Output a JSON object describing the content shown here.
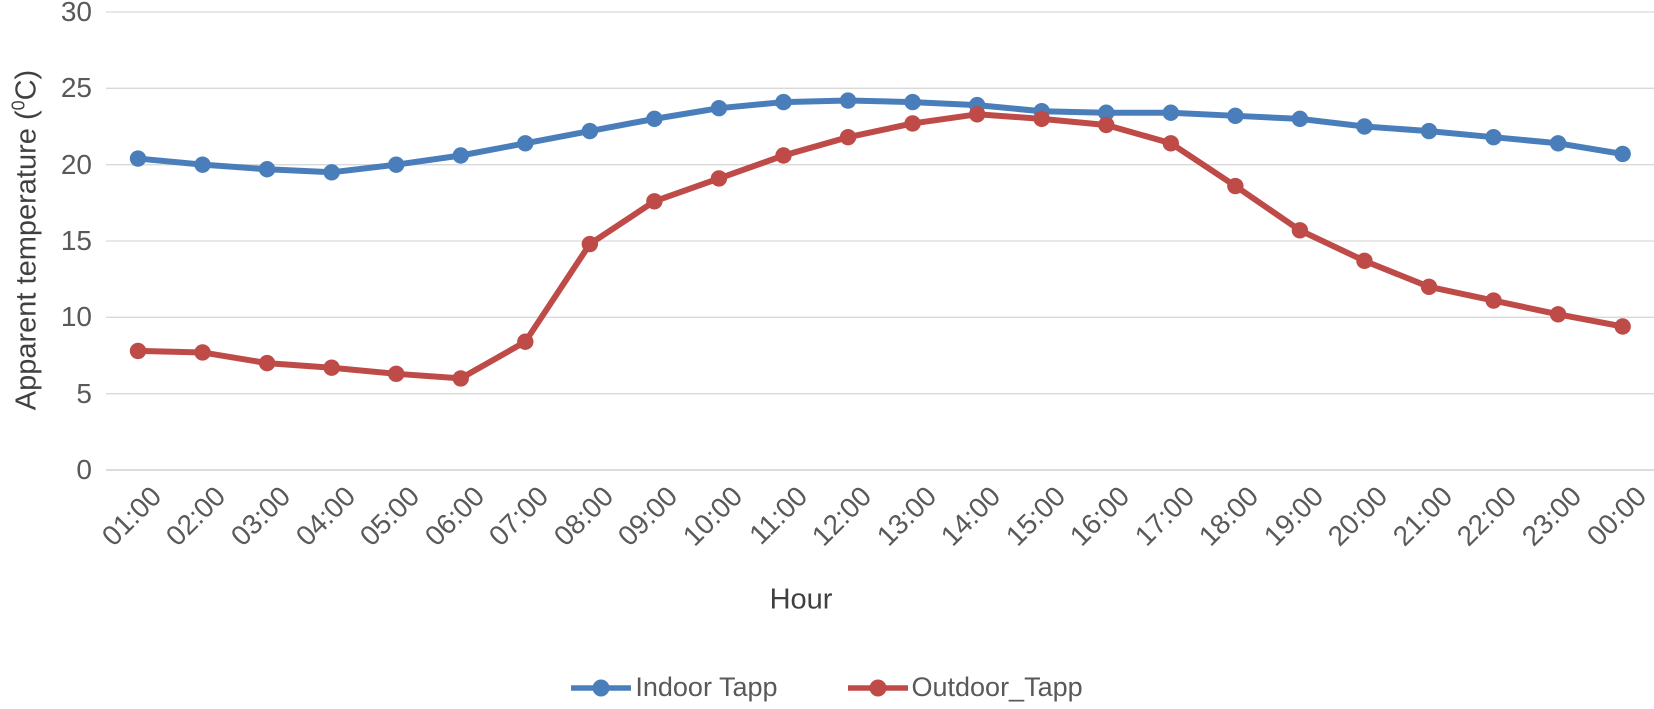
{
  "chart_data": {
    "type": "line",
    "title": "",
    "xlabel": "Hour",
    "ylabel": "Apparent temperature (0C)",
    "ylabel_parts": {
      "prefix": "Apparent temperature (",
      "superscript": "0",
      "suffix": "C)"
    },
    "x_categories": [
      "01:00",
      "02:00",
      "03:00",
      "04:00",
      "05:00",
      "06:00",
      "07:00",
      "08:00",
      "09:00",
      "10:00",
      "11:00",
      "12:00",
      "13:00",
      "14:00",
      "15:00",
      "16:00",
      "17:00",
      "18:00",
      "19:00",
      "20:00",
      "21:00",
      "22:00",
      "23:00",
      "00:00"
    ],
    "yticks": [
      0,
      5,
      10,
      15,
      20,
      25,
      30
    ],
    "ylim": [
      0,
      30
    ],
    "grid": true,
    "legend_position": "bottom",
    "series": [
      {
        "name": "Indoor Tapp",
        "color": "#4A7EBB",
        "values": [
          20.4,
          20.0,
          19.7,
          19.5,
          20.0,
          20.6,
          21.4,
          22.2,
          23.0,
          23.7,
          24.1,
          24.2,
          24.1,
          23.9,
          23.5,
          23.4,
          23.4,
          23.2,
          23.0,
          22.5,
          22.2,
          21.8,
          21.4,
          20.7
        ]
      },
      {
        "name": "Outdoor_Tapp",
        "color": "#BE4B48",
        "values": [
          7.8,
          7.7,
          7.0,
          6.7,
          6.3,
          6.0,
          8.4,
          14.8,
          17.6,
          19.1,
          20.6,
          21.8,
          22.7,
          23.3,
          23.0,
          22.6,
          21.4,
          18.6,
          15.7,
          13.7,
          12.0,
          11.1,
          10.2,
          9.4
        ]
      }
    ]
  },
  "colors": {
    "gridline": "#D9D9D9",
    "zero_axis": "#C6C6C6",
    "tick_text": "#595959"
  }
}
